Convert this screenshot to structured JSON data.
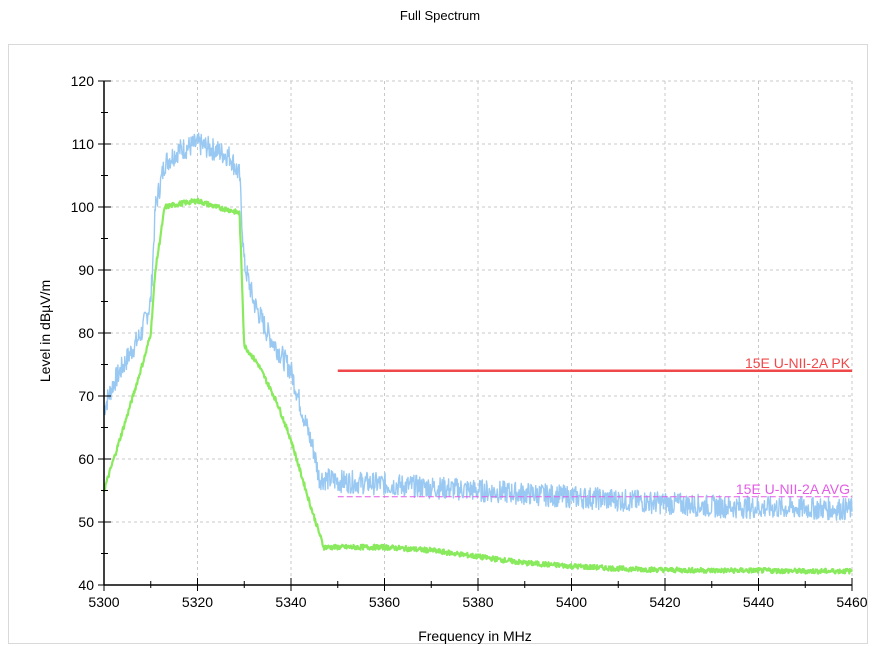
{
  "chart_data": {
    "type": "line",
    "title": "Full Spectrum",
    "xlabel": "Frequency in MHz",
    "ylabel": "Level in dBµV/m",
    "xlim": [
      5300,
      5460
    ],
    "ylim": [
      40,
      120
    ],
    "x_ticks": [
      5300,
      5320,
      5340,
      5360,
      5380,
      5400,
      5420,
      5440,
      5460
    ],
    "y_ticks": [
      40,
      50,
      60,
      70,
      80,
      90,
      100,
      110,
      120
    ],
    "grid": true,
    "series": [
      {
        "color": "#99c9f2",
        "noise": 1.8,
        "x": [
          5300,
          5302,
          5305,
          5308,
          5310,
          5311,
          5313,
          5316,
          5320,
          5324,
          5327,
          5329,
          5330,
          5332,
          5335,
          5340,
          5343,
          5345,
          5346,
          5350,
          5360,
          5370,
          5380,
          5390,
          5400,
          5410,
          5420,
          5430,
          5440,
          5450,
          5460
        ],
        "values": [
          68,
          72,
          76,
          80,
          85,
          100,
          107,
          109,
          110,
          109,
          108,
          105,
          91,
          85,
          80,
          74,
          66,
          61,
          57,
          56.5,
          56,
          55.5,
          55,
          54.5,
          54,
          53.5,
          53,
          52.5,
          52.3,
          52.2,
          52
        ]
      },
      {
        "color": "#88ea5c",
        "noise": 0.4,
        "x": [
          5300,
          5305,
          5309,
          5310,
          5311,
          5313,
          5316,
          5320,
          5324,
          5327,
          5329,
          5330,
          5333,
          5337,
          5340,
          5344,
          5347,
          5350,
          5360,
          5370,
          5380,
          5390,
          5400,
          5410,
          5420,
          5430,
          5440,
          5450,
          5460
        ],
        "values": [
          55,
          67,
          77,
          80,
          90,
          100,
          100.5,
          101,
          100,
          99.5,
          99,
          78,
          75,
          69,
          63,
          53,
          46,
          46,
          46,
          45.5,
          44.5,
          43.5,
          43,
          42.6,
          42.4,
          42.3,
          42.3,
          42.2,
          42.2
        ]
      }
    ],
    "limit_lines": [
      {
        "label": "15E U-NII-2A PK",
        "x": [
          5350,
          5460
        ],
        "y": 74,
        "color": "#f0484a",
        "style": "solid"
      },
      {
        "label": "15E U-NII-2A AVG",
        "x": [
          5350,
          5460
        ],
        "y": 54,
        "color": "#e35ce6",
        "style": "dashed"
      }
    ]
  }
}
